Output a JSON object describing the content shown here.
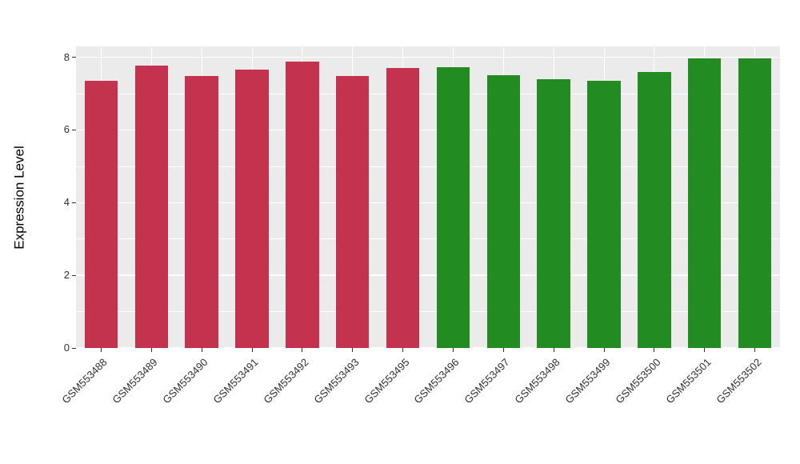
{
  "chart_data": {
    "type": "bar",
    "title": "",
    "xlabel": "",
    "ylabel": "Expression Level",
    "categories": [
      "GSM553488",
      "GSM553489",
      "GSM553490",
      "GSM553491",
      "GSM553492",
      "GSM553493",
      "GSM553495",
      "GSM553496",
      "GSM553497",
      "GSM553498",
      "GSM553499",
      "GSM553500",
      "GSM553501",
      "GSM553502"
    ],
    "values": [
      7.35,
      7.78,
      7.48,
      7.67,
      7.88,
      7.48,
      7.7,
      7.73,
      7.5,
      7.4,
      7.35,
      7.6,
      7.98,
      7.98
    ],
    "bar_colors": [
      "#C3334D",
      "#C3334D",
      "#C3334D",
      "#C3334D",
      "#C3334D",
      "#C3334D",
      "#C3334D",
      "#228B22",
      "#228B22",
      "#228B22",
      "#228B22",
      "#228B22",
      "#228B22",
      "#228B22"
    ],
    "ylim": [
      0,
      8.3
    ],
    "yticks": [
      0,
      2,
      4,
      6,
      8
    ],
    "yticks_minor": [
      1,
      3,
      5,
      7
    ],
    "grid": true,
    "legend": "none",
    "panel_background": "#EBEBEB",
    "grid_color": "#FFFFFF"
  }
}
